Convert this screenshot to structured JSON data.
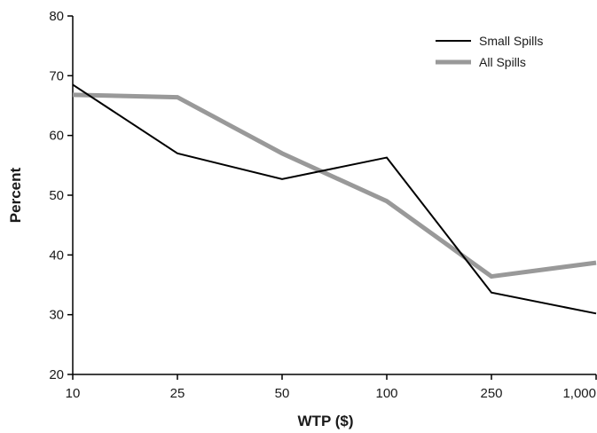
{
  "chart_data": {
    "type": "line",
    "title": "",
    "xlabel": "WTP ($)",
    "ylabel": "Percent",
    "categories": [
      "10",
      "25",
      "50",
      "100",
      "250",
      "1,000"
    ],
    "ylim": [
      20,
      80
    ],
    "yticks": [
      20,
      30,
      40,
      50,
      60,
      70,
      80
    ],
    "grid": false,
    "legend_position": "top-right",
    "series": [
      {
        "name": "Small Spills",
        "values": [
          68.5,
          57.0,
          52.7,
          56.3,
          33.7,
          30.2
        ],
        "color": "#000000"
      },
      {
        "name": "All Spills",
        "values": [
          66.8,
          66.4,
          57.0,
          49.0,
          36.4,
          38.7
        ],
        "color": "#999999"
      }
    ]
  }
}
